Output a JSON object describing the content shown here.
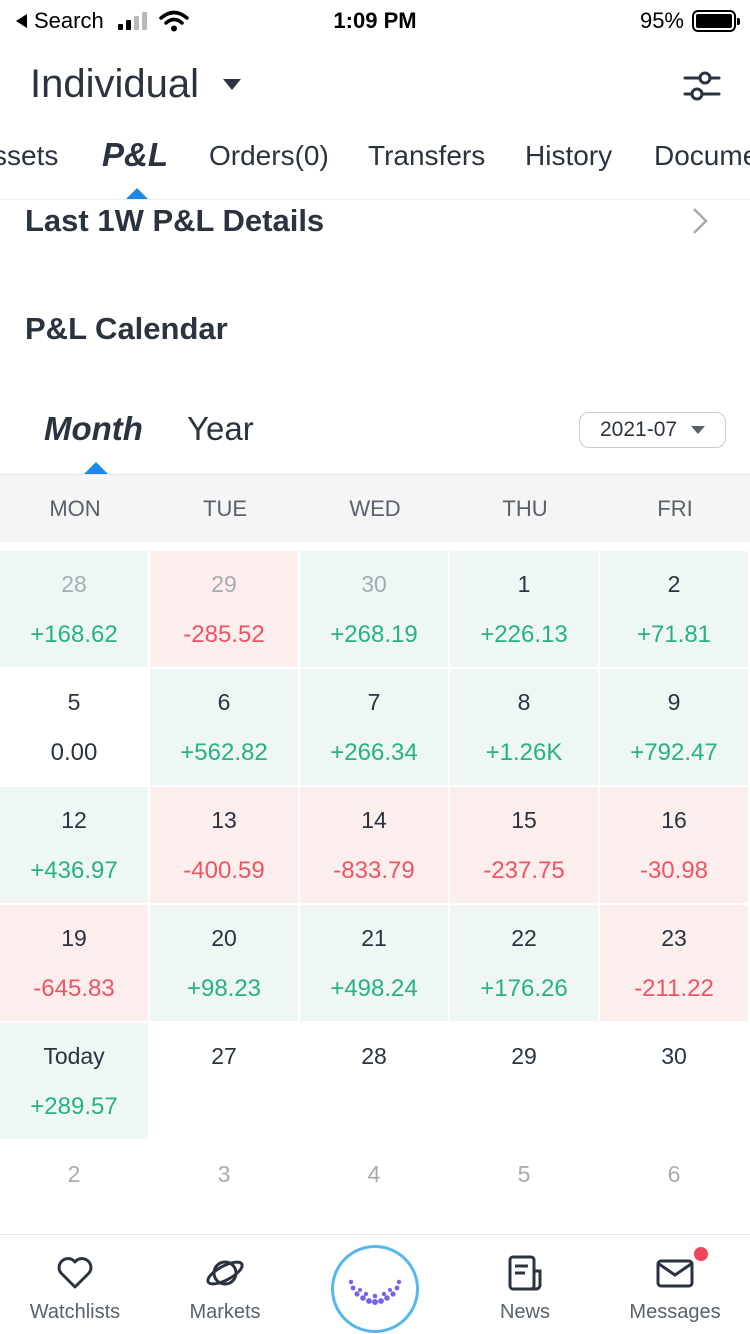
{
  "status": {
    "back_label": "Search",
    "time": "1:09 PM",
    "battery": "95%"
  },
  "header": {
    "account": "Individual"
  },
  "tabs": [
    "ssets",
    "P&L",
    "Orders(0)",
    "Transfers",
    "History",
    "Docume"
  ],
  "sections": {
    "details": "Last 1W P&L Details",
    "calendar": "P&L Calendar"
  },
  "calendar_tabs": [
    "Month",
    "Year"
  ],
  "month_select": "2021-07",
  "weekdays": [
    "MON",
    "TUE",
    "WED",
    "THU",
    "FRI"
  ],
  "weeks": [
    [
      {
        "d": "28",
        "v": "+168.62",
        "s": "pos",
        "muted": true
      },
      {
        "d": "29",
        "v": "-285.52",
        "s": "neg",
        "muted": true
      },
      {
        "d": "30",
        "v": "+268.19",
        "s": "pos",
        "muted": true
      },
      {
        "d": "1",
        "v": "+226.13",
        "s": "pos"
      },
      {
        "d": "2",
        "v": "+71.81",
        "s": "pos"
      }
    ],
    [
      {
        "d": "5",
        "v": "0.00",
        "s": "zero"
      },
      {
        "d": "6",
        "v": "+562.82",
        "s": "pos"
      },
      {
        "d": "7",
        "v": "+266.34",
        "s": "pos"
      },
      {
        "d": "8",
        "v": "+1.26K",
        "s": "pos"
      },
      {
        "d": "9",
        "v": "+792.47",
        "s": "pos"
      }
    ],
    [
      {
        "d": "12",
        "v": "+436.97",
        "s": "pos"
      },
      {
        "d": "13",
        "v": "-400.59",
        "s": "neg"
      },
      {
        "d": "14",
        "v": "-833.79",
        "s": "neg"
      },
      {
        "d": "15",
        "v": "-237.75",
        "s": "neg"
      },
      {
        "d": "16",
        "v": "-30.98",
        "s": "neg"
      }
    ],
    [
      {
        "d": "19",
        "v": "-645.83",
        "s": "neg"
      },
      {
        "d": "20",
        "v": "+98.23",
        "s": "pos"
      },
      {
        "d": "21",
        "v": "+498.24",
        "s": "pos"
      },
      {
        "d": "22",
        "v": "+176.26",
        "s": "pos"
      },
      {
        "d": "23",
        "v": "-211.22",
        "s": "neg"
      }
    ],
    [
      {
        "d": "Today",
        "v": "+289.57",
        "s": "pos"
      },
      {
        "d": "27",
        "v": "",
        "s": "none"
      },
      {
        "d": "28",
        "v": "",
        "s": "none"
      },
      {
        "d": "29",
        "v": "",
        "s": "none"
      },
      {
        "d": "30",
        "v": "",
        "s": "none"
      }
    ],
    [
      {
        "d": "2",
        "v": "",
        "s": "none",
        "muted": true
      },
      {
        "d": "3",
        "v": "",
        "s": "none",
        "muted": true
      },
      {
        "d": "4",
        "v": "",
        "s": "none",
        "muted": true
      },
      {
        "d": "5",
        "v": "",
        "s": "none",
        "muted": true
      },
      {
        "d": "6",
        "v": "",
        "s": "none",
        "muted": true
      }
    ]
  ],
  "bottom_nav": [
    {
      "label": "Watchlists",
      "icon": "heart-icon"
    },
    {
      "label": "Markets",
      "icon": "planet-icon"
    },
    {
      "label": "",
      "icon": "home-logo-icon"
    },
    {
      "label": "News",
      "icon": "news-icon"
    },
    {
      "label": "Messages",
      "icon": "mail-icon"
    }
  ],
  "colors": {
    "positive": "#27b27f",
    "negative": "#ee5463",
    "accent": "#1e88e5",
    "badge": "#f0445a"
  }
}
